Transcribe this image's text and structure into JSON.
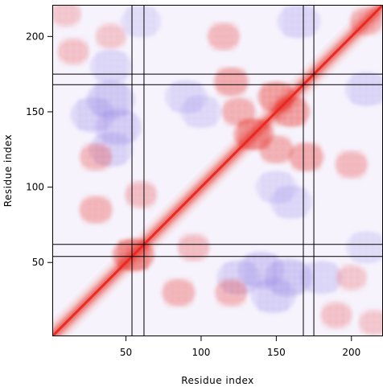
{
  "chart_data": {
    "type": "heatmap",
    "title": "",
    "xlabel": "Residue index",
    "ylabel": "Residue index",
    "xlim": [
      1,
      221
    ],
    "ylim": [
      1,
      221
    ],
    "x_ticks": [
      50,
      100,
      150,
      200
    ],
    "y_ticks": [
      50,
      100,
      150,
      200
    ],
    "x_tick_labels": [
      "50",
      "100",
      "150",
      "200"
    ],
    "y_tick_labels": [
      "50",
      "100",
      "150",
      "200"
    ],
    "grid": false,
    "legend": "none",
    "marker_lines": [
      54,
      62,
      168,
      175
    ],
    "colors": {
      "positive": "#e8281e",
      "negative": "#9b8ce6",
      "neutral": "#ffffff",
      "lines": "#000000"
    },
    "hotspots": [
      {
        "x": 55,
        "y": 55,
        "value": 1.0
      },
      {
        "x": 135,
        "y": 135,
        "value": 0.9
      },
      {
        "x": 150,
        "y": 160,
        "value": 0.75
      },
      {
        "x": 160,
        "y": 150,
        "value": 0.75
      },
      {
        "x": 120,
        "y": 170,
        "value": 0.6
      },
      {
        "x": 170,
        "y": 120,
        "value": 0.6
      },
      {
        "x": 125,
        "y": 150,
        "value": 0.55
      },
      {
        "x": 150,
        "y": 125,
        "value": 0.55
      },
      {
        "x": 85,
        "y": 30,
        "value": 0.5
      },
      {
        "x": 30,
        "y": 85,
        "value": 0.5
      },
      {
        "x": 120,
        "y": 30,
        "value": 0.45
      },
      {
        "x": 30,
        "y": 120,
        "value": 0.45
      },
      {
        "x": 115,
        "y": 200,
        "value": 0.45
      },
      {
        "x": 200,
        "y": 115,
        "value": 0.45
      },
      {
        "x": 190,
        "y": 15,
        "value": 0.35
      },
      {
        "x": 15,
        "y": 190,
        "value": 0.35
      },
      {
        "x": 60,
        "y": 95,
        "value": 0.4
      },
      {
        "x": 95,
        "y": 60,
        "value": 0.4
      },
      {
        "x": 10,
        "y": 215,
        "value": 0.3
      },
      {
        "x": 215,
        "y": 10,
        "value": 0.3
      },
      {
        "x": 210,
        "y": 210,
        "value": 0.5
      },
      {
        "x": 40,
        "y": 200,
        "value": 0.3
      },
      {
        "x": 200,
        "y": 40,
        "value": 0.3
      }
    ],
    "coldspots": [
      {
        "x": 40,
        "y": 158,
        "value": -0.8
      },
      {
        "x": 158,
        "y": 40,
        "value": -0.8
      },
      {
        "x": 28,
        "y": 148,
        "value": -0.6
      },
      {
        "x": 148,
        "y": 28,
        "value": -0.6
      },
      {
        "x": 140,
        "y": 45,
        "value": -0.7
      },
      {
        "x": 45,
        "y": 140,
        "value": -0.7
      },
      {
        "x": 125,
        "y": 40,
        "value": -0.55
      },
      {
        "x": 40,
        "y": 125,
        "value": -0.55
      },
      {
        "x": 165,
        "y": 210,
        "value": -0.5
      },
      {
        "x": 210,
        "y": 165,
        "value": -0.5
      },
      {
        "x": 160,
        "y": 90,
        "value": -0.45
      },
      {
        "x": 90,
        "y": 160,
        "value": -0.45
      },
      {
        "x": 60,
        "y": 210,
        "value": -0.35
      },
      {
        "x": 210,
        "y": 60,
        "value": -0.35
      },
      {
        "x": 100,
        "y": 150,
        "value": -0.4
      },
      {
        "x": 150,
        "y": 100,
        "value": -0.4
      },
      {
        "x": 180,
        "y": 40,
        "value": -0.45
      },
      {
        "x": 40,
        "y": 180,
        "value": -0.45
      }
    ]
  }
}
